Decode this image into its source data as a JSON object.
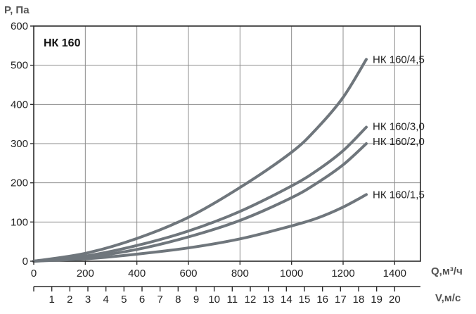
{
  "chart_data": {
    "type": "line",
    "title": "НК 160",
    "ylabel": "P, Па",
    "xlabel": "Q,м³/ч",
    "x2label": "V,м/с",
    "xlim": [
      0,
      1500
    ],
    "ylim": [
      0,
      600
    ],
    "x_ticks": [
      0,
      200,
      400,
      600,
      800,
      1000,
      1200,
      1400
    ],
    "y_ticks": [
      0,
      100,
      200,
      300,
      400,
      500,
      600
    ],
    "x2_ticks": [
      1,
      2,
      3,
      4,
      5,
      6,
      7,
      8,
      9,
      10,
      11,
      12,
      13,
      14,
      15,
      16,
      17,
      18,
      19,
      20
    ],
    "x2_scale_m3h_per_ms": 70,
    "grid": true,
    "curve_color": "#6f767c",
    "series": [
      {
        "name": "НК 160/4,5",
        "x": [
          0,
          200,
          400,
          600,
          800,
          1000,
          1100,
          1200,
          1290
        ],
        "y": [
          0,
          20,
          58,
          112,
          188,
          278,
          340,
          418,
          515
        ]
      },
      {
        "name": "НК 160/3,0",
        "x": [
          0,
          200,
          400,
          600,
          800,
          1000,
          1100,
          1200,
          1290
        ],
        "y": [
          0,
          13,
          40,
          77,
          127,
          192,
          232,
          282,
          342
        ]
      },
      {
        "name": "НК 160/2,0",
        "x": [
          0,
          200,
          400,
          600,
          800,
          1000,
          1100,
          1200,
          1290
        ],
        "y": [
          0,
          10,
          30,
          62,
          104,
          162,
          200,
          246,
          300
        ]
      },
      {
        "name": "НК 160/1,5",
        "x": [
          0,
          200,
          400,
          600,
          800,
          1000,
          1100,
          1200,
          1290
        ],
        "y": [
          0,
          6,
          18,
          34,
          57,
          90,
          110,
          138,
          170
        ]
      }
    ]
  }
}
